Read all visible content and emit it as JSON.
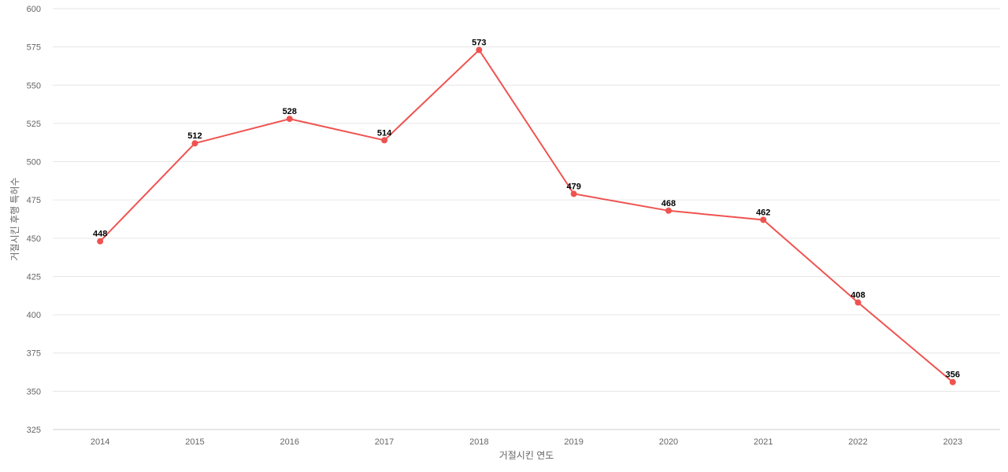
{
  "chart_data": {
    "type": "line",
    "title": "",
    "xlabel": "거절시킨 연도",
    "ylabel": "거절시킨 후행 특허수",
    "ylim": [
      325,
      600
    ],
    "yticks": [
      325,
      350,
      375,
      400,
      425,
      450,
      475,
      500,
      525,
      550,
      575,
      600
    ],
    "grid": true,
    "categories": [
      "2014",
      "2015",
      "2016",
      "2017",
      "2018",
      "2019",
      "2020",
      "2021",
      "2022",
      "2023"
    ],
    "series": [
      {
        "values": [
          448,
          512,
          528,
          514,
          573,
          479,
          468,
          462,
          408,
          356
        ],
        "color": "#ef5350"
      }
    ]
  }
}
